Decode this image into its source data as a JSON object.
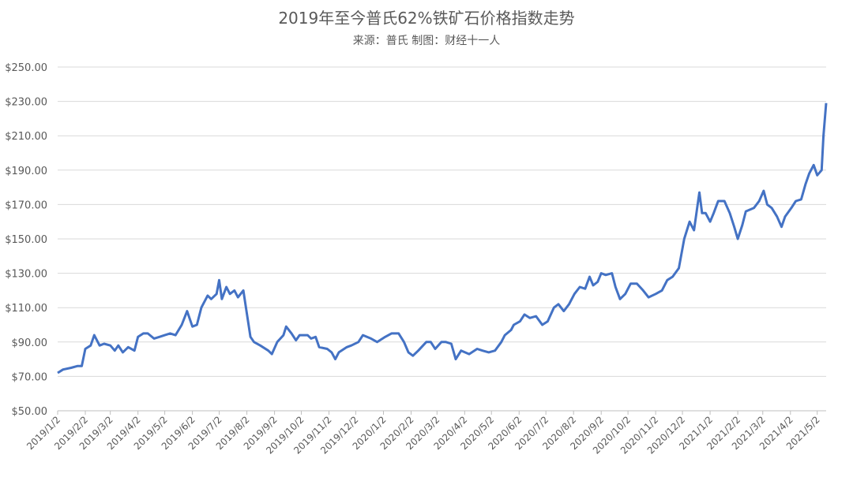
{
  "chart_data": {
    "type": "line",
    "title": "2019年至今普氏62%铁矿石价格指数走势",
    "subtitle": "来源：普氏 制图：财经十一人",
    "x": [
      "2019/1/2",
      "2019/1/8",
      "2019/1/17",
      "2019/1/24",
      "2019/1/29",
      "2019/2/2",
      "2019/2/8",
      "2019/2/12",
      "2019/2/18",
      "2019/2/23",
      "2019/3/2",
      "2019/3/7",
      "2019/3/11",
      "2019/3/16",
      "2019/3/22",
      "2019/3/29",
      "2019/4/2",
      "2019/4/8",
      "2019/4/13",
      "2019/4/20",
      "2019/4/26",
      "2019/5/2",
      "2019/5/8",
      "2019/5/14",
      "2019/5/21",
      "2019/5/27",
      "2019/6/2",
      "2019/6/7",
      "2019/6/12",
      "2019/6/19",
      "2019/6/23",
      "2019/6/29",
      "2019/7/2",
      "2019/7/5",
      "2019/7/10",
      "2019/7/14",
      "2019/7/19",
      "2019/7/23",
      "2019/7/29",
      "2019/8/1",
      "2019/8/6",
      "2019/8/10",
      "2019/8/17",
      "2019/8/26",
      "2019/8/30",
      "2019/9/5",
      "2019/9/12",
      "2019/9/15",
      "2019/9/21",
      "2019/9/26",
      "2019/9/30",
      "2019/10/9",
      "2019/10/13",
      "2019/10/18",
      "2019/10/22",
      "2019/10/31",
      "2019/11/5",
      "2019/11/9",
      "2019/11/13",
      "2019/11/22",
      "2019/11/27",
      "2019/12/5",
      "2019/12/10",
      "2019/12/19",
      "2019/12/26",
      "2020/1/4",
      "2020/1/11",
      "2020/1/19",
      "2020/1/25",
      "2020/1/30",
      "2020/2/4",
      "2020/2/10",
      "2020/2/19",
      "2020/2/24",
      "2020/2/29",
      "2020/3/7",
      "2020/3/12",
      "2020/3/18",
      "2020/3/23",
      "2020/3/29",
      "2020/4/7",
      "2020/4/16",
      "2020/4/22",
      "2020/4/29",
      "2020/5/6",
      "2020/5/13",
      "2020/5/17",
      "2020/5/24",
      "2020/5/27",
      "2020/6/3",
      "2020/6/8",
      "2020/6/14",
      "2020/6/21",
      "2020/6/28",
      "2020/7/4",
      "2020/7/11",
      "2020/7/16",
      "2020/7/22",
      "2020/7/28",
      "2020/8/3",
      "2020/8/9",
      "2020/8/15",
      "2020/8/20",
      "2020/8/24",
      "2020/8/29",
      "2020/9/2",
      "2020/9/7",
      "2020/9/14",
      "2020/9/18",
      "2020/9/23",
      "2020/9/29",
      "2020/10/5",
      "2020/10/12",
      "2020/10/19",
      "2020/10/25",
      "2020/11/2",
      "2020/11/9",
      "2020/11/15",
      "2020/11/21",
      "2020/11/28",
      "2020/12/4",
      "2020/12/10",
      "2020/12/15",
      "2020/12/19",
      "2020/12/21",
      "2020/12/24",
      "2020/12/28",
      "2021/1/2",
      "2021/1/6",
      "2021/1/11",
      "2021/1/18",
      "2021/1/24",
      "2021/1/29",
      "2021/2/2",
      "2021/2/7",
      "2021/2/11",
      "2021/2/20",
      "2021/2/26",
      "2021/3/3",
      "2021/3/7",
      "2021/3/12",
      "2021/3/18",
      "2021/3/23",
      "2021/3/27",
      "2021/4/3",
      "2021/4/8",
      "2021/4/14",
      "2021/4/19",
      "2021/4/23",
      "2021/4/28",
      "2021/5/2",
      "2021/5/7",
      "2021/5/9",
      "2021/5/12"
    ],
    "series": [
      {
        "name": "普氏62%铁矿石价格指数",
        "color": "#4472c4",
        "values": [
          72,
          74,
          75,
          76,
          76,
          86,
          88,
          94,
          88,
          89,
          88,
          85,
          88,
          84,
          87,
          85,
          93,
          95,
          95,
          92,
          93,
          94,
          95,
          94,
          100,
          108,
          99,
          100,
          110,
          117,
          115,
          118,
          126,
          115,
          122,
          118,
          120,
          116,
          120,
          110,
          93,
          90,
          88,
          85,
          83,
          90,
          94,
          99,
          95,
          91,
          94,
          94,
          92,
          93,
          87,
          86,
          84,
          80,
          84,
          87,
          88,
          90,
          94,
          92,
          90,
          93,
          95,
          95,
          90,
          84,
          82,
          85,
          90,
          90,
          86,
          90,
          90,
          89,
          80,
          85,
          83,
          86,
          85,
          84,
          85,
          90,
          94,
          97,
          100,
          102,
          106,
          104,
          105,
          100,
          102,
          110,
          112,
          108,
          112,
          118,
          122,
          121,
          128,
          123,
          125,
          130,
          129,
          130,
          122,
          115,
          118,
          124,
          124,
          120,
          116,
          118,
          120,
          126,
          128,
          133,
          150,
          160,
          155,
          170,
          177,
          165,
          165,
          160,
          165,
          172,
          172,
          165,
          157,
          150,
          158,
          166,
          168,
          172,
          178,
          170,
          168,
          163,
          157,
          163,
          168,
          172,
          173,
          182,
          188,
          193,
          187,
          190,
          210,
          229
        ]
      }
    ],
    "xlim": [
      "2019/1/2",
      "2021/5/12"
    ],
    "xticks": [
      "2019/1/2",
      "2019/2/2",
      "2019/3/2",
      "2019/4/2",
      "2019/5/2",
      "2019/6/2",
      "2019/7/2",
      "2019/8/2",
      "2019/9/2",
      "2019/10/2",
      "2019/11/2",
      "2019/12/2",
      "2020/1/2",
      "2020/2/2",
      "2020/3/2",
      "2020/4/2",
      "2020/5/2",
      "2020/6/2",
      "2020/7/2",
      "2020/8/2",
      "2020/9/2",
      "2020/10/2",
      "2020/11/2",
      "2020/12/2",
      "2021/1/2",
      "2021/2/2",
      "2021/3/2",
      "2021/4/2",
      "2021/5/2"
    ],
    "ylim": [
      50,
      250
    ],
    "yticks": [
      {
        "value": 50,
        "label": "$50.00"
      },
      {
        "value": 70,
        "label": "$70.00"
      },
      {
        "value": 90,
        "label": "$90.00"
      },
      {
        "value": 110,
        "label": "$110.00"
      },
      {
        "value": 130,
        "label": "$130.00"
      },
      {
        "value": 150,
        "label": "$150.00"
      },
      {
        "value": 170,
        "label": "$170.00"
      },
      {
        "value": 190,
        "label": "$190.00"
      },
      {
        "value": 210,
        "label": "$210.00"
      },
      {
        "value": 230,
        "label": "$230.00"
      },
      {
        "value": 250,
        "label": "$250.00"
      }
    ],
    "grid": true
  }
}
